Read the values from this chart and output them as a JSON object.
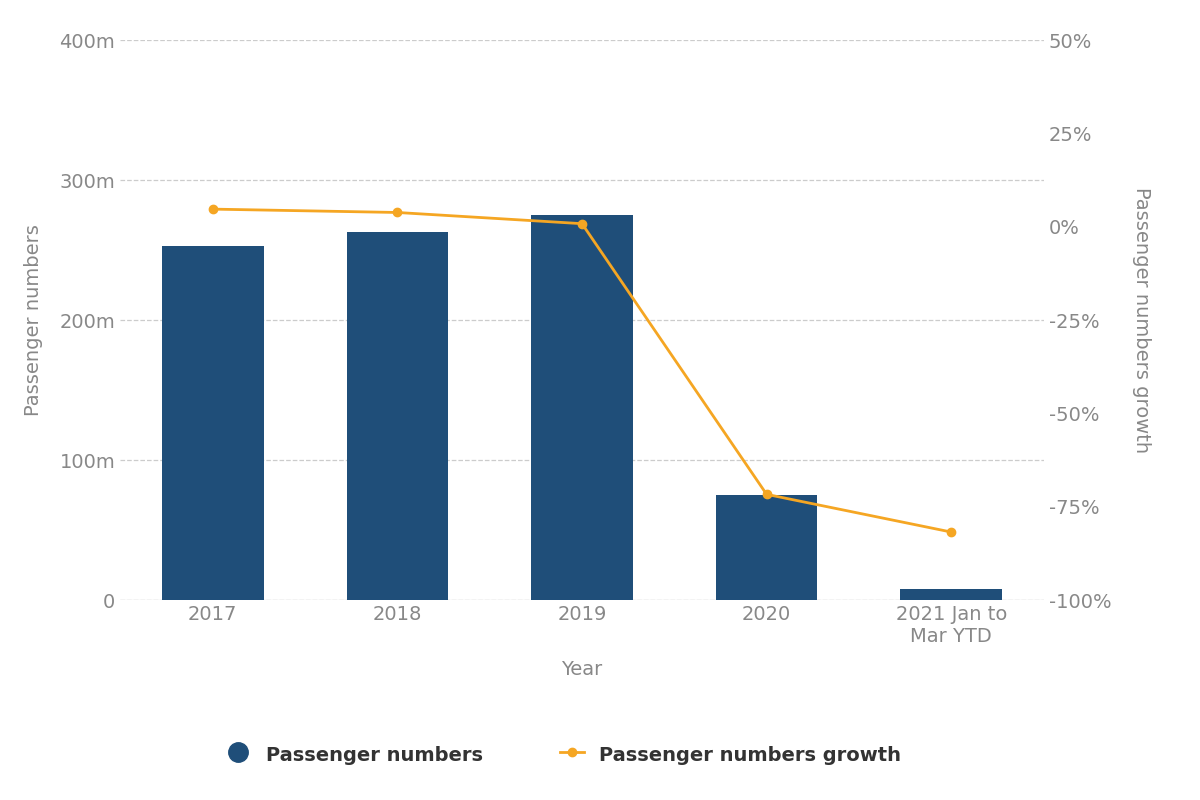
{
  "categories": [
    "2017",
    "2018",
    "2019",
    "2020",
    "2021 Jan to\nMar YTD"
  ],
  "bar_values": [
    253000000,
    263000000,
    275000000,
    75000000,
    8000000
  ],
  "growth_values": [
    0.047,
    0.038,
    0.008,
    -0.717,
    -0.818
  ],
  "bar_color": "#1F4E79",
  "line_color": "#F5A623",
  "left_ylabel": "Passenger numbers",
  "right_ylabel": "Passenger numbers growth",
  "xlabel": "Year",
  "left_ylim": [
    0,
    400000000
  ],
  "right_ylim": [
    -1.0,
    0.5
  ],
  "left_yticks": [
    0,
    100000000,
    200000000,
    300000000,
    400000000
  ],
  "left_yticklabels": [
    "0",
    "100m",
    "200m",
    "300m",
    "400m"
  ],
  "right_yticks": [
    -1.0,
    -0.75,
    -0.5,
    -0.25,
    0.0,
    0.25,
    0.5
  ],
  "right_yticklabels": [
    "-100%",
    "-75%",
    "-50%",
    "-25%",
    "0%",
    "25%",
    "50%"
  ],
  "legend_bar_label": "Passenger numbers",
  "legend_line_label": "Passenger numbers growth",
  "background_color": "#ffffff",
  "grid_color": "#cccccc",
  "bar_width": 0.55,
  "tick_color": "#888888",
  "label_color": "#888888"
}
